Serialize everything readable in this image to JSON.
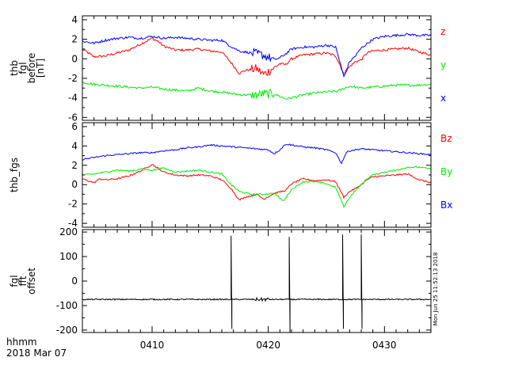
{
  "chart_data": [
    {
      "type": "line",
      "ylabel_lines": [
        "thb",
        "fgl",
        "before",
        "[nT]"
      ],
      "ylim": [
        -6.3,
        4.4
      ],
      "yticks": [
        -6,
        -4,
        -2,
        0,
        2,
        4
      ],
      "xlim": [
        404.0,
        434.0
      ],
      "series": [
        {
          "name": "z",
          "color": "#ff0000",
          "points": [
            [
              404.0,
              1.0
            ],
            [
              405.0,
              0.2
            ],
            [
              406.0,
              0.3
            ],
            [
              407.0,
              0.6
            ],
            [
              408.0,
              0.9
            ],
            [
              409.0,
              1.5
            ],
            [
              410.0,
              2.1
            ],
            [
              410.5,
              1.8
            ],
            [
              411.0,
              1.3
            ],
            [
              412.0,
              0.9
            ],
            [
              413.0,
              0.9
            ],
            [
              414.0,
              1.0
            ],
            [
              415.0,
              0.8
            ],
            [
              416.0,
              0.7
            ],
            [
              416.8,
              -0.4
            ],
            [
              417.5,
              -1.5
            ],
            [
              418.0,
              -1.2
            ],
            [
              419.0,
              -1.0
            ],
            [
              419.6,
              -1.6
            ],
            [
              420.5,
              -0.9
            ],
            [
              421.0,
              -0.5
            ],
            [
              421.5,
              -0.6
            ],
            [
              422.0,
              0.0
            ],
            [
              423.0,
              0.4
            ],
            [
              424.0,
              0.5
            ],
            [
              425.0,
              0.6
            ],
            [
              425.8,
              0.3
            ],
            [
              426.2,
              -0.7
            ],
            [
              426.5,
              -1.6
            ],
            [
              427.0,
              -0.8
            ],
            [
              427.5,
              -0.3
            ],
            [
              428.0,
              -0.1
            ],
            [
              428.5,
              0.6
            ],
            [
              429.0,
              0.8
            ],
            [
              430.0,
              0.9
            ],
            [
              431.0,
              1.0
            ],
            [
              432.0,
              1.1
            ],
            [
              433.0,
              0.7
            ],
            [
              434.0,
              0.4
            ]
          ]
        },
        {
          "name": "y",
          "color": "#00ee00",
          "points": [
            [
              404.0,
              -2.4
            ],
            [
              405.0,
              -2.6
            ],
            [
              406.0,
              -2.7
            ],
            [
              407.0,
              -2.8
            ],
            [
              408.0,
              -2.9
            ],
            [
              409.0,
              -3.0
            ],
            [
              410.0,
              -2.9
            ],
            [
              411.0,
              -3.1
            ],
            [
              412.0,
              -3.2
            ],
            [
              413.0,
              -3.3
            ],
            [
              414.0,
              -3.0
            ],
            [
              415.0,
              -3.3
            ],
            [
              416.0,
              -3.4
            ],
            [
              417.0,
              -3.6
            ],
            [
              418.0,
              -3.7
            ],
            [
              419.0,
              -3.7
            ],
            [
              419.5,
              -3.6
            ],
            [
              420.5,
              -3.6
            ],
            [
              421.5,
              -4.1
            ],
            [
              422.0,
              -4.0
            ],
            [
              423.0,
              -3.7
            ],
            [
              424.0,
              -3.5
            ],
            [
              425.0,
              -3.4
            ],
            [
              426.0,
              -3.3
            ],
            [
              427.0,
              -2.8
            ],
            [
              428.0,
              -3.0
            ],
            [
              429.0,
              -2.9
            ],
            [
              430.0,
              -2.8
            ],
            [
              431.0,
              -2.7
            ],
            [
              432.0,
              -2.7
            ],
            [
              433.0,
              -2.7
            ],
            [
              434.0,
              -2.6
            ]
          ]
        },
        {
          "name": "x",
          "color": "#0000ff",
          "points": [
            [
              404.0,
              1.8
            ],
            [
              405.0,
              1.6
            ],
            [
              406.0,
              1.9
            ],
            [
              407.0,
              2.1
            ],
            [
              408.0,
              2.2
            ],
            [
              409.0,
              2.1
            ],
            [
              410.0,
              2.3
            ],
            [
              411.0,
              2.1
            ],
            [
              412.0,
              2.2
            ],
            [
              413.0,
              2.1
            ],
            [
              414.0,
              2.0
            ],
            [
              415.0,
              1.9
            ],
            [
              416.0,
              1.9
            ],
            [
              416.6,
              1.4
            ],
            [
              417.5,
              0.8
            ],
            [
              418.5,
              0.6
            ],
            [
              419.5,
              0.4
            ],
            [
              420.5,
              -0.1
            ],
            [
              421.0,
              0.1
            ],
            [
              421.5,
              0.5
            ],
            [
              422.0,
              1.0
            ],
            [
              423.0,
              1.2
            ],
            [
              424.0,
              1.2
            ],
            [
              425.0,
              1.4
            ],
            [
              425.8,
              1.2
            ],
            [
              426.2,
              -0.5
            ],
            [
              426.5,
              -1.8
            ],
            [
              427.0,
              -0.3
            ],
            [
              427.5,
              0.3
            ],
            [
              428.0,
              1.1
            ],
            [
              429.0,
              2.0
            ],
            [
              430.0,
              2.3
            ],
            [
              431.0,
              2.4
            ],
            [
              432.0,
              2.5
            ],
            [
              433.0,
              2.4
            ],
            [
              434.0,
              2.4
            ]
          ]
        }
      ]
    },
    {
      "type": "line",
      "ylabel_lines": [
        "thb_fgs"
      ],
      "ylim": [
        -4.4,
        6.4
      ],
      "yticks": [
        -4,
        -2,
        0,
        2,
        4,
        6
      ],
      "xlim": [
        404.0,
        434.0
      ],
      "series": [
        {
          "name": "Bz",
          "color": "#ff0000",
          "points": [
            [
              404.0,
              0.6
            ],
            [
              405.0,
              0.2
            ],
            [
              405.5,
              0.6
            ],
            [
              406.0,
              0.5
            ],
            [
              407.0,
              0.6
            ],
            [
              408.0,
              0.9
            ],
            [
              409.0,
              1.4
            ],
            [
              410.0,
              2.1
            ],
            [
              410.5,
              1.7
            ],
            [
              411.0,
              1.3
            ],
            [
              412.0,
              1.0
            ],
            [
              413.0,
              0.9
            ],
            [
              414.0,
              1.0
            ],
            [
              415.0,
              0.9
            ],
            [
              416.0,
              0.5
            ],
            [
              416.8,
              -0.4
            ],
            [
              417.5,
              -1.6
            ],
            [
              418.0,
              -1.3
            ],
            [
              419.0,
              -1.0
            ],
            [
              419.6,
              -1.5
            ],
            [
              420.5,
              -0.9
            ],
            [
              421.5,
              -0.6
            ],
            [
              422.0,
              0.1
            ],
            [
              423.0,
              0.6
            ],
            [
              424.0,
              0.4
            ],
            [
              425.0,
              0.5
            ],
            [
              425.8,
              0.3
            ],
            [
              426.2,
              -0.6
            ],
            [
              426.5,
              -1.3
            ],
            [
              427.0,
              -0.7
            ],
            [
              427.5,
              -0.4
            ],
            [
              428.0,
              0.0
            ],
            [
              428.5,
              0.5
            ],
            [
              429.0,
              0.8
            ],
            [
              430.0,
              0.9
            ],
            [
              431.0,
              1.0
            ],
            [
              432.0,
              1.1
            ],
            [
              433.0,
              0.5
            ],
            [
              434.0,
              0.2
            ]
          ]
        },
        {
          "name": "By",
          "color": "#00ee00",
          "points": [
            [
              404.0,
              1.0
            ],
            [
              405.0,
              1.1
            ],
            [
              406.0,
              1.3
            ],
            [
              407.0,
              1.5
            ],
            [
              408.0,
              1.4
            ],
            [
              409.0,
              1.6
            ],
            [
              410.0,
              1.5
            ],
            [
              411.0,
              1.7
            ],
            [
              412.0,
              1.3
            ],
            [
              413.0,
              1.4
            ],
            [
              414.0,
              1.5
            ],
            [
              415.0,
              1.3
            ],
            [
              416.0,
              1.1
            ],
            [
              416.8,
              0.0
            ],
            [
              417.5,
              -0.7
            ],
            [
              418.5,
              -1.0
            ],
            [
              419.5,
              -1.0
            ],
            [
              420.5,
              -0.9
            ],
            [
              421.3,
              -1.7
            ],
            [
              422.0,
              -0.5
            ],
            [
              423.0,
              0.3
            ],
            [
              424.0,
              0.3
            ],
            [
              425.0,
              0.1
            ],
            [
              425.8,
              -0.3
            ],
            [
              426.2,
              -1.4
            ],
            [
              426.5,
              -2.3
            ],
            [
              427.0,
              -1.3
            ],
            [
              427.5,
              -0.6
            ],
            [
              428.0,
              0.0
            ],
            [
              428.5,
              0.6
            ],
            [
              429.0,
              1.0
            ],
            [
              430.0,
              1.3
            ],
            [
              431.0,
              1.5
            ],
            [
              432.0,
              1.8
            ],
            [
              433.0,
              1.8
            ],
            [
              434.0,
              1.6
            ]
          ]
        },
        {
          "name": "Bx",
          "color": "#0000ff",
          "points": [
            [
              404.0,
              2.6
            ],
            [
              405.0,
              2.8
            ],
            [
              406.0,
              3.0
            ],
            [
              407.0,
              3.1
            ],
            [
              408.0,
              3.2
            ],
            [
              409.0,
              3.3
            ],
            [
              410.0,
              3.3
            ],
            [
              411.0,
              3.5
            ],
            [
              412.0,
              3.6
            ],
            [
              413.0,
              3.8
            ],
            [
              414.0,
              3.9
            ],
            [
              415.0,
              4.1
            ],
            [
              416.0,
              4.0
            ],
            [
              417.0,
              3.9
            ],
            [
              418.0,
              3.8
            ],
            [
              419.0,
              3.7
            ],
            [
              420.0,
              3.6
            ],
            [
              420.5,
              3.2
            ],
            [
              421.0,
              3.6
            ],
            [
              421.5,
              4.2
            ],
            [
              422.0,
              4.1
            ],
            [
              423.0,
              3.9
            ],
            [
              424.0,
              3.8
            ],
            [
              425.0,
              3.6
            ],
            [
              425.8,
              3.3
            ],
            [
              426.3,
              2.2
            ],
            [
              426.7,
              3.3
            ],
            [
              427.0,
              3.5
            ],
            [
              428.0,
              3.7
            ],
            [
              429.0,
              3.6
            ],
            [
              430.0,
              3.5
            ],
            [
              431.0,
              3.4
            ],
            [
              432.0,
              3.3
            ],
            [
              433.0,
              3.2
            ],
            [
              434.0,
              3.1
            ]
          ]
        }
      ]
    },
    {
      "type": "line",
      "ylabel_lines": [
        "fgl",
        "fft",
        "offset"
      ],
      "ylim": [
        -210,
        210
      ],
      "yticks": [
        -200,
        -100,
        0,
        100,
        200
      ],
      "xlim": [
        404.0,
        434.0
      ],
      "series": [
        {
          "name": "",
          "color": "#000000",
          "baseline": -75,
          "noise": 2.5,
          "spikes": [
            [
              416.8,
              185,
              -195
            ],
            [
              421.8,
              180,
              -210
            ],
            [
              426.4,
              190,
              -195
            ],
            [
              428.0,
              190,
              -195
            ]
          ]
        }
      ],
      "side_label": "Mon Jun 25 11:52:13 2018"
    }
  ],
  "xaxis": {
    "ticks": [
      410,
      420,
      430
    ],
    "ticklabels": [
      "0410",
      "0420",
      "0430"
    ],
    "minor_step": 1,
    "label_line1": "hhmm",
    "label_line2": "2018 Mar 07"
  }
}
